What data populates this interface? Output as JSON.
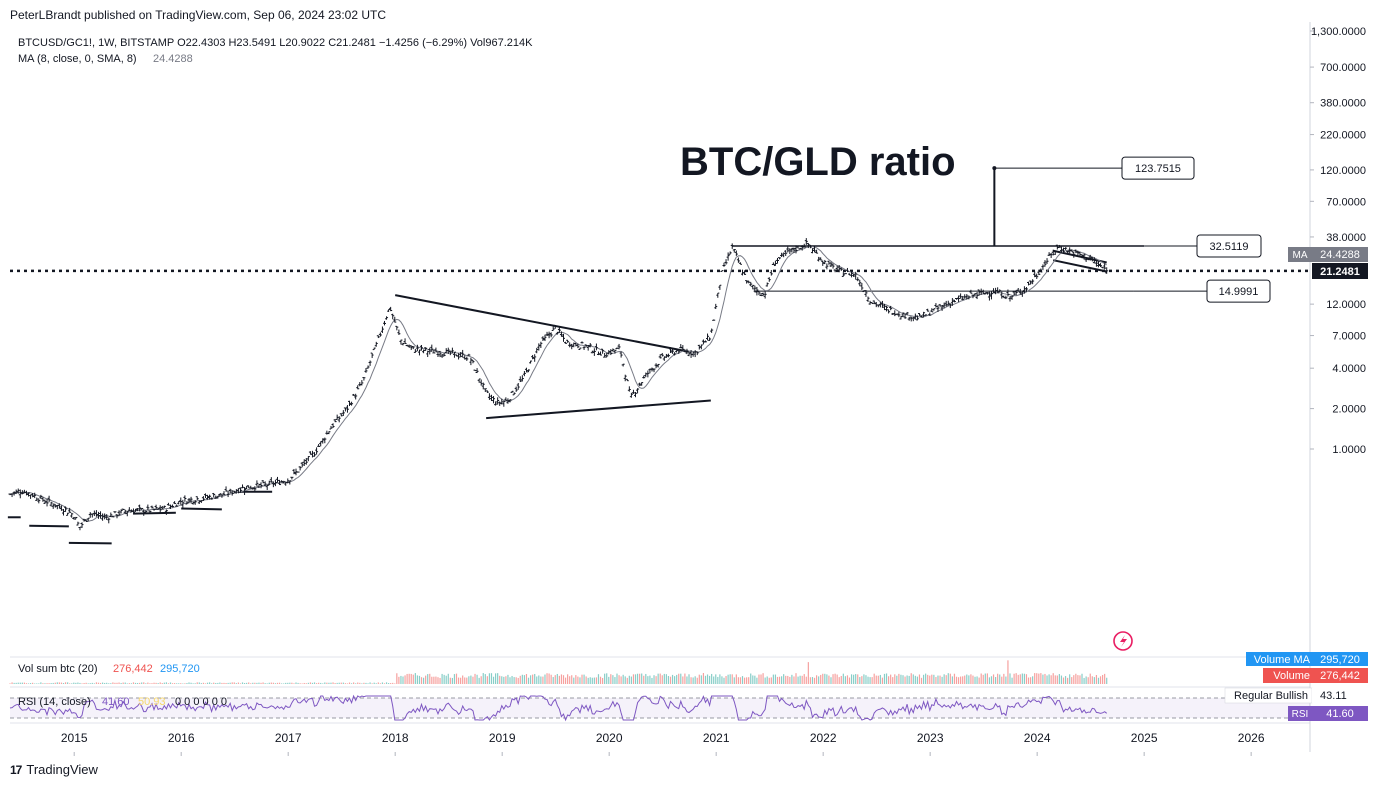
{
  "header": {
    "published": "PeterLBrandt published on TradingView.com, Sep 06, 2024 23:02 UTC"
  },
  "legend": {
    "symbol_line": "BTCUSD/GC1!, 1W, BITSTAMP  O22.4303  H23.5491  L20.9022  C21.2481  −1.4256 (−6.29%)  Vol967.214K",
    "ma_label": "MA (8, close, 0, SMA, 8)",
    "ma_value": "24.4288"
  },
  "title": "BTC/GLD ratio",
  "price_axis": {
    "ticks": [
      {
        "label": "1,300.0000",
        "value": 1300
      },
      {
        "label": "700.0000",
        "value": 700
      },
      {
        "label": "380.0000",
        "value": 380
      },
      {
        "label": "220.0000",
        "value": 220
      },
      {
        "label": "120.0000",
        "value": 120
      },
      {
        "label": "70.0000",
        "value": 70
      },
      {
        "label": "38.0000",
        "value": 38
      },
      {
        "label": "12.0000",
        "value": 12
      },
      {
        "label": "7.0000",
        "value": 7
      },
      {
        "label": "4.0000",
        "value": 4
      },
      {
        "label": "2.0000",
        "value": 2
      },
      {
        "label": "1.0000",
        "value": 1
      }
    ],
    "ma_tag": {
      "label": "MA",
      "value": "24.4288",
      "color": "#787b86"
    },
    "last_price": {
      "value": "21.2481",
      "color": "#131722"
    }
  },
  "time_axis": [
    "2015",
    "2016",
    "2017",
    "2018",
    "2019",
    "2020",
    "2021",
    "2022",
    "2023",
    "2024",
    "2025",
    "2026"
  ],
  "callouts": [
    {
      "label": "123.7515",
      "value": 123.7515
    },
    {
      "label": "32.5119",
      "value": 32.5119
    },
    {
      "label": "14.9991",
      "value": 14.9991
    }
  ],
  "volume": {
    "label": "Vol sum btc (20)",
    "value1": "276,442",
    "value2": "295,720",
    "tag_ma_label": "Volume MA",
    "tag_ma_value": "295,720",
    "tag_vol_label": "Volume",
    "tag_vol_value": "276,442",
    "colors": {
      "up": "#26a69a",
      "down": "#ef5350",
      "ma": "#2196f3"
    }
  },
  "rsi": {
    "label": "RSI (14, close)",
    "value": "41.60",
    "value2": "50.93",
    "zeros": "0  0  0  0  0  0",
    "bullish_label": "Regular Bullish",
    "bullish_value": "43.11",
    "tag_label": "RSI",
    "tag_value": "41.60",
    "color": "#7e57c2"
  },
  "branding": "TradingView",
  "chart_data": {
    "type": "line",
    "title": "BTC/GLD ratio",
    "scale": "log",
    "xlabel": "",
    "ylabel": "",
    "ylim": [
      0.3,
      1300
    ],
    "x_range": [
      2014.4,
      2026.55
    ],
    "series": [
      {
        "name": "BTCUSD/GC1!",
        "x": [
          2014.4,
          2014.5,
          2014.6,
          2014.7,
          2014.8,
          2014.9,
          2015.0,
          2015.05,
          2015.15,
          2015.3,
          2015.5,
          2015.7,
          2015.85,
          2016.0,
          2016.2,
          2016.4,
          2016.6,
          2016.8,
          2017.0,
          2017.1,
          2017.25,
          2017.4,
          2017.55,
          2017.7,
          2017.85,
          2017.95,
          2018.05,
          2018.15,
          2018.3,
          2018.5,
          2018.7,
          2018.85,
          2018.95,
          2019.05,
          2019.2,
          2019.35,
          2019.5,
          2019.6,
          2019.8,
          2019.95,
          2020.1,
          2020.2,
          2020.35,
          2020.5,
          2020.65,
          2020.8,
          2020.95,
          2021.05,
          2021.15,
          2021.3,
          2021.45,
          2021.55,
          2021.7,
          2021.85,
          2022.0,
          2022.15,
          2022.3,
          2022.45,
          2022.6,
          2022.75,
          2022.9,
          2023.0,
          2023.2,
          2023.4,
          2023.6,
          2023.75,
          2023.9,
          2024.0,
          2024.1,
          2024.2,
          2024.35,
          2024.5,
          2024.65
        ],
        "values": [
          0.46,
          0.49,
          0.46,
          0.42,
          0.39,
          0.36,
          0.32,
          0.26,
          0.33,
          0.31,
          0.35,
          0.35,
          0.36,
          0.41,
          0.43,
          0.46,
          0.52,
          0.54,
          0.59,
          0.7,
          0.95,
          1.45,
          2.0,
          3.2,
          6.8,
          11.5,
          6.5,
          5.6,
          5.4,
          5.2,
          4.8,
          2.6,
          2.2,
          2.3,
          3.4,
          6.0,
          8.0,
          6.2,
          5.8,
          5.1,
          5.6,
          2.4,
          3.6,
          4.8,
          5.5,
          5.2,
          7.0,
          20.0,
          32.0,
          17.0,
          14.0,
          25.0,
          30.0,
          34.0,
          25.0,
          21.0,
          20.0,
          12.5,
          11.0,
          10.0,
          9.5,
          10.5,
          12.5,
          14.0,
          15.0,
          13.5,
          16.0,
          20.0,
          26.0,
          32.0,
          29.0,
          26.0,
          21.25
        ]
      }
    ],
    "horizontal_levels": [
      32.5119,
      14.9991,
      21.2481
    ],
    "trendlines": [
      {
        "from": [
          2018.0,
          14.0
        ],
        "to": [
          2020.75,
          5.3
        ]
      },
      {
        "from": [
          2018.85,
          1.7
        ],
        "to": [
          2020.95,
          2.3
        ]
      },
      {
        "from": [
          2014.38,
          0.31
        ],
        "to": [
          2014.5,
          0.31
        ]
      },
      {
        "from": [
          2014.58,
          0.268
        ],
        "to": [
          2014.95,
          0.265
        ]
      },
      {
        "from": [
          2014.95,
          0.2
        ],
        "to": [
          2015.35,
          0.198
        ]
      },
      {
        "from": [
          2015.55,
          0.33
        ],
        "to": [
          2015.95,
          0.335
        ]
      },
      {
        "from": [
          2016.0,
          0.36
        ],
        "to": [
          2016.38,
          0.355
        ]
      },
      {
        "from": [
          2016.55,
          0.48
        ],
        "to": [
          2016.85,
          0.48
        ]
      },
      {
        "from": [
          2024.15,
          30.0
        ],
        "to": [
          2024.65,
          24.5
        ]
      },
      {
        "from": [
          2024.15,
          25.5
        ],
        "to": [
          2024.65,
          21.0
        ]
      }
    ],
    "measurement": {
      "at": 2023.6,
      "from": 32.5119,
      "to": 123.7515
    }
  }
}
